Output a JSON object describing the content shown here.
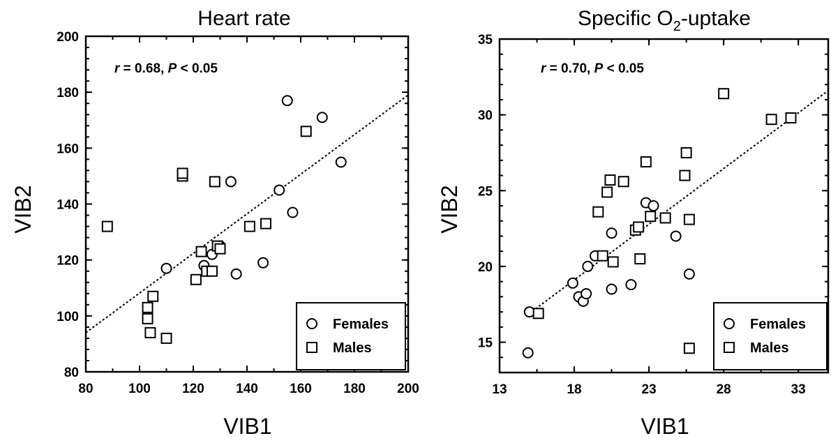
{
  "chart_data": [
    {
      "type": "scatter",
      "title": "Heart rate",
      "title_sub": "",
      "title_after": "",
      "xlabel": "VIB1",
      "ylabel": "VIB2",
      "xlim": [
        80,
        200
      ],
      "ylim": [
        80,
        200
      ],
      "x_ticks": [
        80,
        100,
        120,
        140,
        160,
        180,
        200
      ],
      "y_ticks": [
        80,
        100,
        120,
        140,
        160,
        180,
        200
      ],
      "x_tick_labels": [
        "80",
        "100",
        "120",
        "140",
        "160",
        "180",
        "200"
      ],
      "y_tick_labels": [
        "80",
        "100",
        "120",
        "140",
        "160",
        "180",
        "200"
      ],
      "annotation": {
        "r_symbol": "r",
        "r_text": " = 0.68,  ",
        "p_symbol": "P",
        "p_text": " < 0.05"
      },
      "legend_position": "bottom-right",
      "fit_line": {
        "x": [
          80,
          200
        ],
        "y": [
          94,
          179
        ]
      },
      "series": [
        {
          "name": "Females",
          "marker": "circle",
          "points": [
            [
              110,
              117
            ],
            [
              124,
              118
            ],
            [
              125,
              116
            ],
            [
              127,
              122
            ],
            [
              130,
              125
            ],
            [
              134,
              148
            ],
            [
              136,
              115
            ],
            [
              146,
              119
            ],
            [
              152,
              145
            ],
            [
              155,
              177
            ],
            [
              157,
              137
            ],
            [
              168,
              171
            ],
            [
              175,
              155
            ]
          ]
        },
        {
          "name": "Males",
          "marker": "square",
          "points": [
            [
              88,
              132
            ],
            [
              103,
              103
            ],
            [
              103,
              99
            ],
            [
              104,
              94
            ],
            [
              105,
              107
            ],
            [
              110,
              92
            ],
            [
              116,
              150
            ],
            [
              116,
              151
            ],
            [
              121,
              113
            ],
            [
              123,
              123
            ],
            [
              125,
              116
            ],
            [
              127,
              116
            ],
            [
              128,
              148
            ],
            [
              129,
              125
            ],
            [
              130,
              124
            ],
            [
              141,
              132
            ],
            [
              147,
              133
            ],
            [
              162,
              166
            ]
          ]
        }
      ]
    },
    {
      "type": "scatter",
      "title": "Specific O",
      "title_sub": "2",
      "title_after": "-uptake",
      "xlabel": "VIB1",
      "ylabel": "VIB2",
      "xlim": [
        13,
        35
      ],
      "ylim": [
        13,
        35
      ],
      "x_ticks": [
        13,
        18,
        23,
        28,
        33
      ],
      "y_ticks": [
        15,
        20,
        25,
        30,
        35
      ],
      "x_tick_labels": [
        "13",
        "18",
        "23",
        "28",
        "33"
      ],
      "y_tick_labels": [
        "15",
        "20",
        "25",
        "30",
        "35"
      ],
      "annotation": {
        "r_symbol": "r",
        "r_text": " = 0.70,  ",
        "p_symbol": "P",
        "p_text": " < 0.05"
      },
      "legend_position": "bottom-right",
      "fit_line": {
        "x": [
          15.4,
          35
        ],
        "y": [
          17.2,
          31.6
        ]
      },
      "series": [
        {
          "name": "Females",
          "marker": "circle",
          "points": [
            [
              14.9,
              14.3
            ],
            [
              15.0,
              17.0
            ],
            [
              17.9,
              18.9
            ],
            [
              18.3,
              18.0
            ],
            [
              18.6,
              17.7
            ],
            [
              18.8,
              18.2
            ],
            [
              18.9,
              20.0
            ],
            [
              19.4,
              20.7
            ],
            [
              20.5,
              18.5
            ],
            [
              20.5,
              22.2
            ],
            [
              21.8,
              18.8
            ],
            [
              22.8,
              24.2
            ],
            [
              23.3,
              24.0
            ],
            [
              24.8,
              22.0
            ],
            [
              25.7,
              19.5
            ]
          ]
        },
        {
          "name": "Males",
          "marker": "square",
          "points": [
            [
              15.6,
              16.9
            ],
            [
              19.6,
              23.6
            ],
            [
              19.9,
              20.7
            ],
            [
              20.2,
              24.9
            ],
            [
              20.4,
              25.7
            ],
            [
              20.6,
              20.3
            ],
            [
              21.3,
              25.6
            ],
            [
              22.1,
              22.4
            ],
            [
              22.3,
              22.6
            ],
            [
              22.4,
              20.5
            ],
            [
              22.8,
              26.9
            ],
            [
              23.1,
              23.3
            ],
            [
              24.1,
              23.2
            ],
            [
              25.4,
              26.0
            ],
            [
              25.5,
              27.5
            ],
            [
              25.7,
              23.1
            ],
            [
              25.7,
              14.6
            ],
            [
              28.0,
              31.4
            ],
            [
              31.2,
              29.7
            ],
            [
              32.5,
              29.8
            ]
          ]
        }
      ]
    }
  ]
}
